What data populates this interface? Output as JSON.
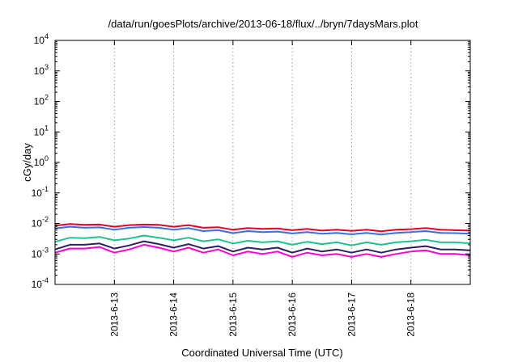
{
  "chart_data": {
    "type": "line",
    "title": "/data/run/goesPlots/archive/2013-06-18/flux/../bryn/7daysMars.plot",
    "xlabel": "Coordinated Universal Time (UTC)",
    "ylabel": "cGy/day",
    "yscale": "log",
    "ylim": [
      0.0001,
      10000
    ],
    "xlim": [
      0,
      7
    ],
    "y_ticks": [
      {
        "base": "10",
        "exp": "-4",
        "value": 0.0001
      },
      {
        "base": "10",
        "exp": "-3",
        "value": 0.001
      },
      {
        "base": "10",
        "exp": "-2",
        "value": 0.01
      },
      {
        "base": "10",
        "exp": "-1",
        "value": 0.1
      },
      {
        "base": "10",
        "exp": "0",
        "value": 1
      },
      {
        "base": "10",
        "exp": "1",
        "value": 10
      },
      {
        "base": "10",
        "exp": "2",
        "value": 100
      },
      {
        "base": "10",
        "exp": "3",
        "value": 1000
      },
      {
        "base": "10",
        "exp": "4",
        "value": 10000
      }
    ],
    "x_ticks": [
      {
        "label": "2013-6-13",
        "value": 1
      },
      {
        "label": "2013-6-14",
        "value": 2
      },
      {
        "label": "2013-6-15",
        "value": 3
      },
      {
        "label": "2013-6-16",
        "value": 4
      },
      {
        "label": "2013-6-17",
        "value": 5
      },
      {
        "label": "2013-6-18",
        "value": 6
      }
    ],
    "grid": true,
    "x": [
      0.0,
      0.25,
      0.5,
      0.75,
      1.0,
      1.25,
      1.5,
      1.75,
      2.0,
      2.25,
      2.5,
      2.75,
      3.0,
      3.25,
      3.5,
      3.75,
      4.0,
      4.25,
      4.5,
      4.75,
      5.0,
      5.25,
      5.5,
      5.75,
      6.0,
      6.25,
      6.5,
      6.75,
      7.0
    ],
    "series": [
      {
        "color": "#e8002a",
        "values": [
          0.0085,
          0.0095,
          0.009,
          0.0092,
          0.0078,
          0.0088,
          0.0092,
          0.009,
          0.0078,
          0.0088,
          0.0072,
          0.0075,
          0.0062,
          0.007,
          0.0066,
          0.0068,
          0.006,
          0.0066,
          0.0058,
          0.0062,
          0.0057,
          0.0062,
          0.0055,
          0.0062,
          0.0065,
          0.007,
          0.0062,
          0.006,
          0.0058
        ]
      },
      {
        "color": "#3a6ee8",
        "values": [
          0.0068,
          0.0078,
          0.0072,
          0.0074,
          0.0062,
          0.0072,
          0.0076,
          0.0072,
          0.0062,
          0.007,
          0.0056,
          0.006,
          0.0048,
          0.0056,
          0.0052,
          0.0054,
          0.0047,
          0.0052,
          0.0046,
          0.0049,
          0.0044,
          0.0049,
          0.0043,
          0.0049,
          0.0052,
          0.0056,
          0.0049,
          0.0048,
          0.0046
        ]
      },
      {
        "color": "#1fc28a",
        "values": [
          0.0025,
          0.0034,
          0.0033,
          0.0036,
          0.0028,
          0.0032,
          0.004,
          0.0034,
          0.0028,
          0.0034,
          0.0026,
          0.003,
          0.0022,
          0.0027,
          0.0024,
          0.0026,
          0.002,
          0.0025,
          0.0021,
          0.0024,
          0.0019,
          0.0024,
          0.002,
          0.0024,
          0.0026,
          0.0029,
          0.0024,
          0.0024,
          0.0022
        ]
      },
      {
        "color": "#2a2060",
        "values": [
          0.0014,
          0.002,
          0.002,
          0.0022,
          0.0015,
          0.0019,
          0.0026,
          0.0021,
          0.0016,
          0.0021,
          0.0015,
          0.0018,
          0.0012,
          0.0016,
          0.0014,
          0.0016,
          0.0011,
          0.0015,
          0.0012,
          0.0014,
          0.0011,
          0.0014,
          0.0011,
          0.0014,
          0.0016,
          0.0018,
          0.0014,
          0.0014,
          0.0013
        ]
      },
      {
        "color": "#ff00d0",
        "values": [
          0.0011,
          0.0015,
          0.0015,
          0.0017,
          0.0011,
          0.0014,
          0.002,
          0.0016,
          0.0012,
          0.0016,
          0.0011,
          0.0014,
          0.0009,
          0.0012,
          0.001,
          0.0012,
          0.0008,
          0.0011,
          0.0009,
          0.001,
          0.0008,
          0.001,
          0.0008,
          0.001,
          0.0012,
          0.0013,
          0.001,
          0.001,
          0.0009
        ]
      }
    ]
  }
}
